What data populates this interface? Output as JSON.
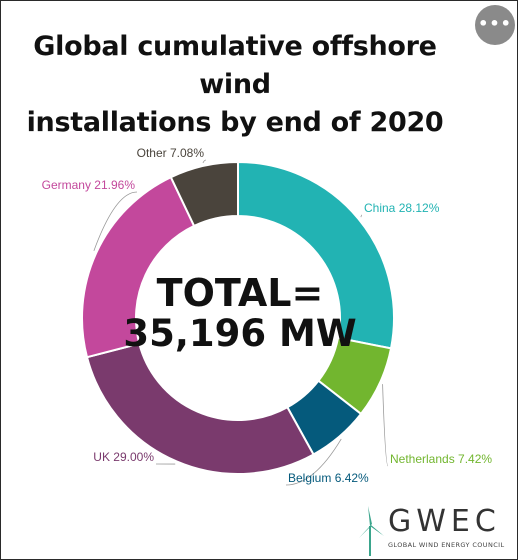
{
  "title_lines": [
    "Global cumulative offshore wind",
    "installations by end of 2020"
  ],
  "menu_button": "•••",
  "center": {
    "line1": "TOTAL=",
    "line2": "35,196 MW"
  },
  "logo": {
    "word": "GWEC",
    "subtitle": "GLOBAL WIND ENERGY COUNCIL"
  },
  "chart_data": {
    "type": "pie",
    "donut": true,
    "title": "Global cumulative offshore wind installations by end of 2020",
    "total": "35,196 MW",
    "slices": [
      {
        "label": "China 28.12%",
        "value": 28.12,
        "color": "#22b3b3"
      },
      {
        "label": "Netherlands 7.42%",
        "value": 7.42,
        "color": "#72b62f"
      },
      {
        "label": "Belgium 6.42%",
        "value": 6.42,
        "color": "#055a7c"
      },
      {
        "label": "UK 29.00%",
        "value": 29.0,
        "color": "#7a3a6d"
      },
      {
        "label": "Germany 21.96%",
        "value": 21.96,
        "color": "#c3489c"
      },
      {
        "label": "Other 7.08%",
        "value": 7.08,
        "color": "#4a443c"
      }
    ]
  }
}
